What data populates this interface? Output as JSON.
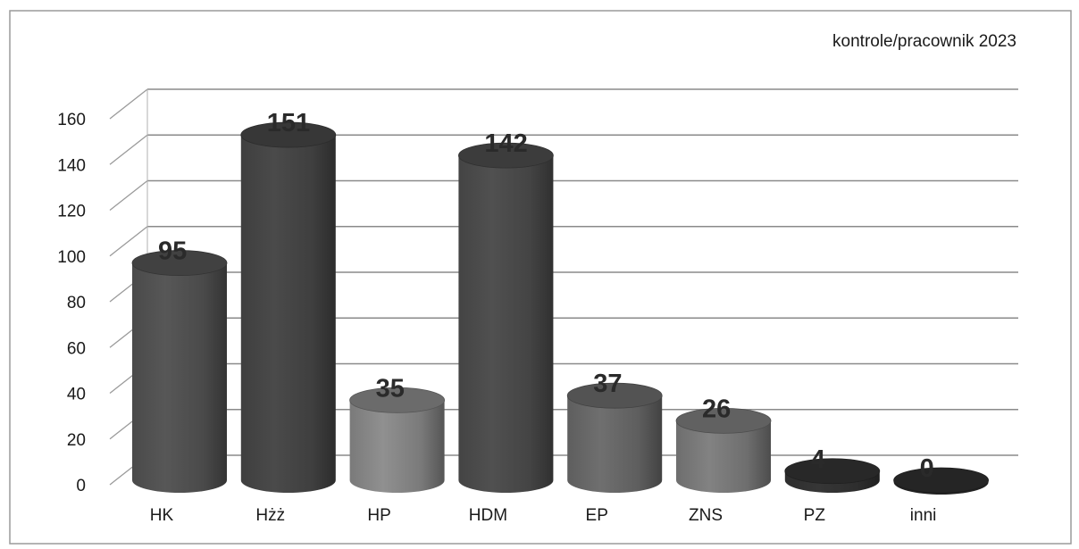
{
  "chart_data": {
    "type": "bar",
    "categories": [
      "HK",
      "Hżż",
      "HP",
      "HDM",
      "EP",
      "ZNS",
      "PZ",
      "inni"
    ],
    "series": [
      {
        "name": "kontrole/pracownik 2023",
        "values": [
          95,
          151,
          35,
          142,
          37,
          26,
          4,
          0
        ]
      }
    ],
    "data_labels": [
      "95",
      "151",
      "35",
      "142",
      "37",
      "26",
      "4",
      "0"
    ],
    "ylim": [
      0,
      160
    ],
    "yticks": [
      0,
      20,
      40,
      60,
      80,
      100,
      120,
      140,
      160
    ],
    "grid": true,
    "legend": "top-right",
    "bar_style": "3d-cylinder",
    "colors": {
      "HK": "#4a4a4a",
      "Hżż": "#3f3f3f",
      "HP": "#7a7a7a",
      "HDM": "#444444",
      "EP": "#5e5e5e",
      "ZNS": "#6e6e6e",
      "PZ": "#2e2e2e",
      "inni": "#2a2a2a"
    }
  }
}
